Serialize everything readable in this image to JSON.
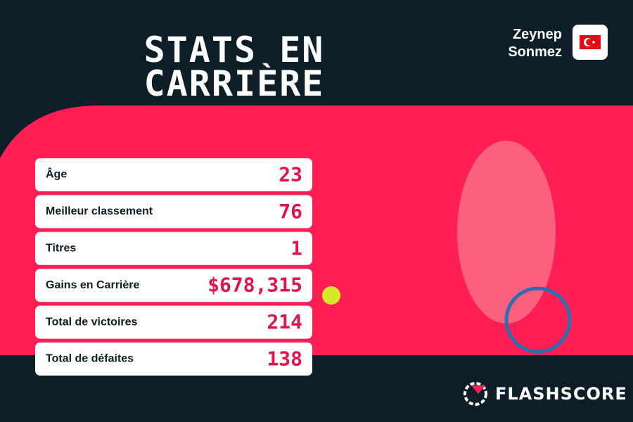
{
  "header": {
    "title": [
      "STATS EN",
      "CARRIÈRE"
    ],
    "player": [
      "Zeynep",
      "Sonmez"
    ]
  },
  "table": {
    "rows": [
      [
        "Âge",
        "23"
      ],
      [
        "Meilleur classement",
        "76"
      ],
      [
        "Titres",
        "1"
      ],
      [
        "Gains en Carrière",
        "$678,315"
      ],
      [
        "Total de victoires",
        "214"
      ],
      [
        "Total de défaites",
        "138"
      ]
    ]
  },
  "footer": {
    "brand": "FLASHSCORE"
  }
}
